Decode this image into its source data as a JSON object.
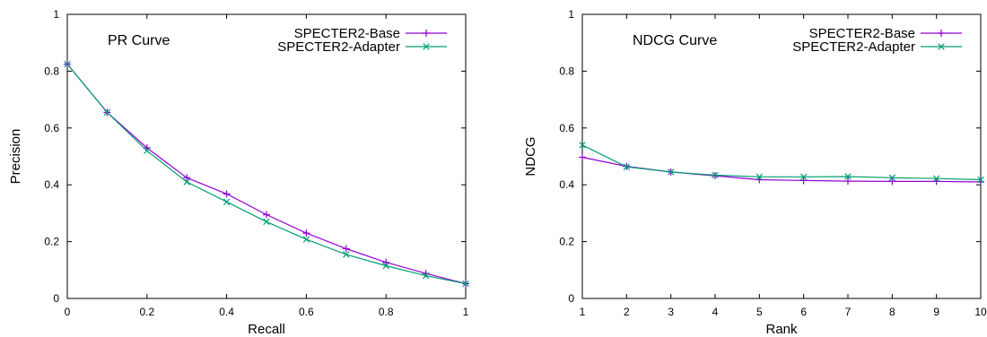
{
  "chart_data": [
    {
      "type": "line",
      "title": "PR Curve",
      "xlabel": "Recall",
      "ylabel": "Precision",
      "xlim": [
        0,
        1
      ],
      "ylim": [
        0,
        1
      ],
      "xticks": [
        "0",
        "0.2",
        "0.4",
        "0.6",
        "0.8",
        "1"
      ],
      "yticks": [
        "0",
        "0.2",
        "0.4",
        "0.6",
        "0.8",
        "1"
      ],
      "x": [
        0,
        0.1,
        0.2,
        0.3,
        0.4,
        0.5,
        0.6,
        0.7,
        0.8,
        0.9,
        1.0
      ],
      "grid": false,
      "legend_position": "top-right",
      "series": [
        {
          "name": "SPECTER2-Base",
          "color": "#9400d3",
          "marker": "plus",
          "values": [
            0.825,
            0.655,
            0.53,
            0.425,
            0.368,
            0.295,
            0.23,
            0.175,
            0.127,
            0.088,
            0.052
          ]
        },
        {
          "name": "SPECTER2-Adapter",
          "color": "#009e73",
          "marker": "cross",
          "values": [
            0.825,
            0.655,
            0.52,
            0.41,
            0.34,
            0.27,
            0.208,
            0.155,
            0.115,
            0.08,
            0.052
          ]
        }
      ]
    },
    {
      "type": "line",
      "title": "NDCG Curve",
      "xlabel": "Rank",
      "ylabel": "NDCG",
      "xlim": [
        1,
        10
      ],
      "ylim": [
        0,
        1
      ],
      "xticks": [
        "1",
        "2",
        "3",
        "4",
        "5",
        "6",
        "7",
        "8",
        "9",
        "10"
      ],
      "yticks": [
        "0",
        "0.2",
        "0.4",
        "0.6",
        "0.8",
        "1"
      ],
      "x": [
        1,
        2,
        3,
        4,
        5,
        6,
        7,
        8,
        9,
        10
      ],
      "grid": false,
      "legend_position": "top-right",
      "series": [
        {
          "name": "SPECTER2-Base",
          "color": "#9400d3",
          "marker": "plus",
          "values": [
            0.497,
            0.465,
            0.445,
            0.432,
            0.418,
            0.415,
            0.413,
            0.412,
            0.412,
            0.41
          ]
        },
        {
          "name": "SPECTER2-Adapter",
          "color": "#009e73",
          "marker": "cross",
          "values": [
            0.54,
            0.463,
            0.445,
            0.434,
            0.428,
            0.428,
            0.429,
            0.425,
            0.422,
            0.418
          ]
        }
      ]
    }
  ]
}
